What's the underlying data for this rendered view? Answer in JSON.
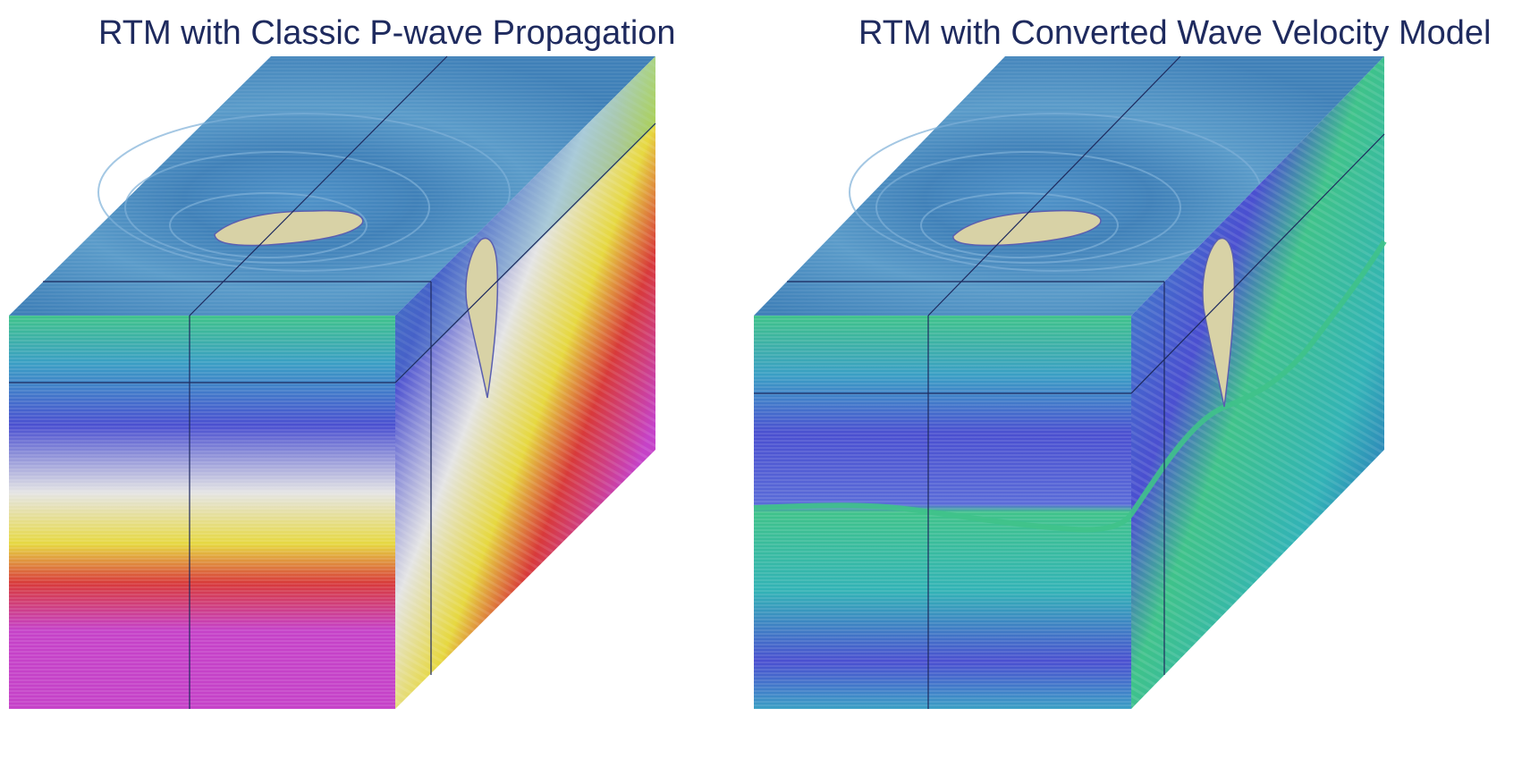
{
  "figure": {
    "left_panel": {
      "title": "RTM with Classic P-wave Propagation"
    },
    "right_panel": {
      "title": "RTM with Converted Wave Velocity Model"
    }
  },
  "colors": {
    "title_text": "#1e2a5e",
    "top_face": "#3f80b8",
    "salt_body": "#d8d2a6",
    "grid_line": "#1e2a5e",
    "velocity_scale": [
      "#3fc28a",
      "#3a9fc4",
      "#4a4fd0",
      "#e4e4e4",
      "#e6d840",
      "#d83a3a",
      "#c542c8"
    ]
  }
}
